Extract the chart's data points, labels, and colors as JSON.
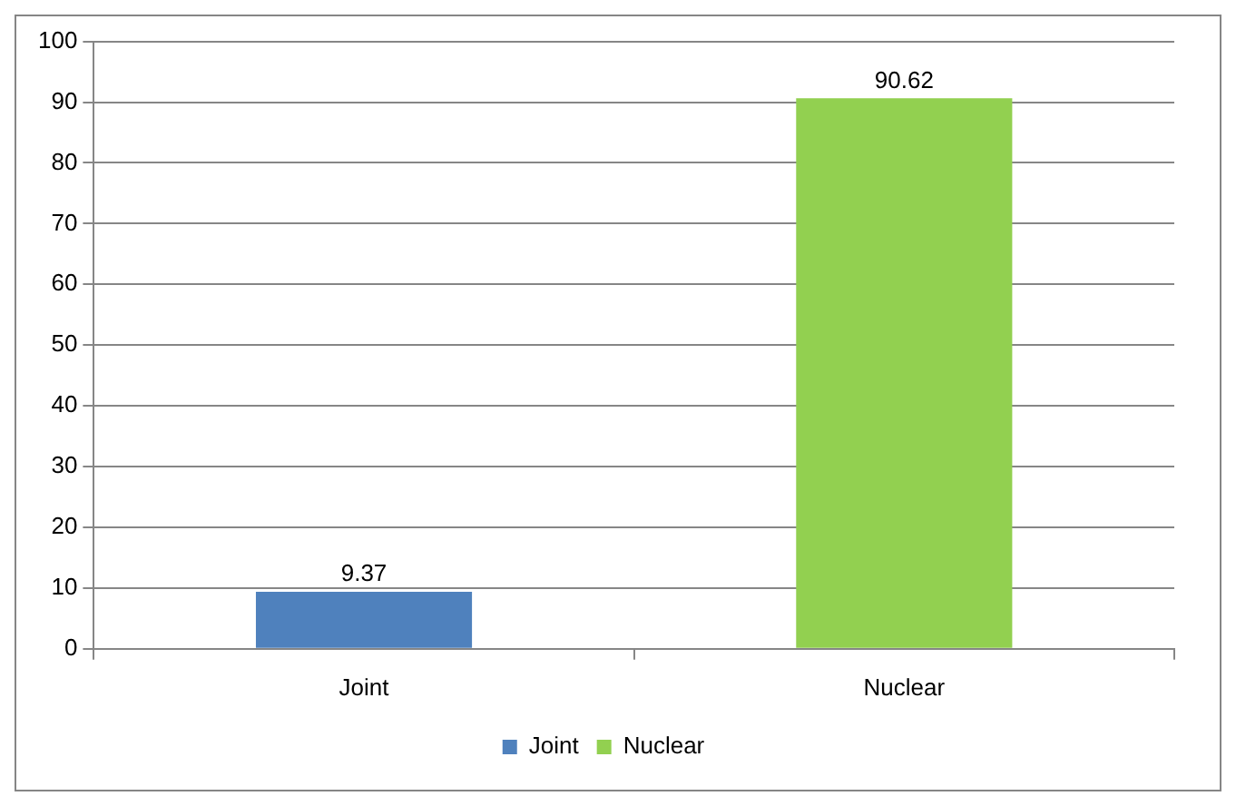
{
  "chart_data": {
    "type": "bar",
    "categories": [
      "Joint",
      "Nuclear"
    ],
    "stacked": true,
    "series": [
      {
        "name": "Joint",
        "color": "#4f81bd",
        "values": [
          9.37,
          null
        ]
      },
      {
        "name": "Nuclear",
        "color": "#92d050",
        "values": [
          null,
          90.62
        ]
      }
    ],
    "ylim": [
      0,
      100
    ],
    "yticks": [
      0,
      10,
      20,
      30,
      40,
      50,
      60,
      70,
      80,
      90,
      100
    ],
    "grid": "y",
    "legend": "bottom",
    "data_labels": true
  }
}
